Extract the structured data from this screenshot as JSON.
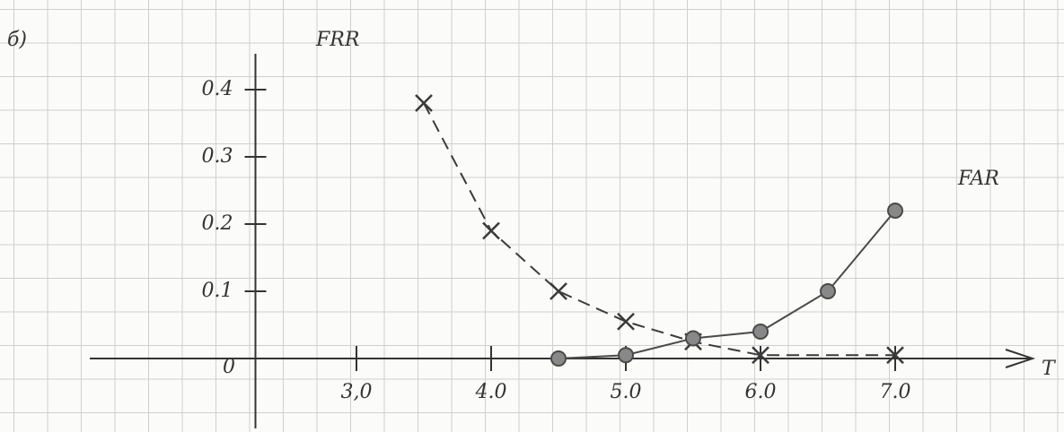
{
  "chart_data": {
    "type": "line",
    "label": "б)",
    "x_label": "T",
    "origin_label": "0",
    "xlim": [
      2.25,
      7.9
    ],
    "ylim": [
      -0.1,
      0.42
    ],
    "xticks": [
      {
        "value": 3,
        "label": "3,0"
      },
      {
        "value": 4,
        "label": "4.0"
      },
      {
        "value": 5,
        "label": "5.0"
      },
      {
        "value": 6,
        "label": "6.0"
      },
      {
        "value": 7,
        "label": "7.0"
      }
    ],
    "yticks": [
      0.1,
      0.2,
      0.3,
      0.4
    ],
    "series": [
      {
        "name": "FRR",
        "color": "#3a3a3a",
        "line_style": "dashed",
        "marker": "x",
        "x": [
          3.5,
          4,
          4.5,
          5,
          5.5,
          6,
          7
        ],
        "values": [
          0.38,
          0.19,
          0.1,
          0.055,
          0.025,
          0.005,
          0.005
        ]
      },
      {
        "name": "FAR",
        "color": "#4a4a4a",
        "line_style": "solid",
        "marker": "circle",
        "x": [
          4.5,
          5,
          5.5,
          6,
          6.5,
          7
        ],
        "values": [
          0,
          0.005,
          0.03,
          0.04,
          0.1,
          0.22
        ]
      }
    ]
  }
}
